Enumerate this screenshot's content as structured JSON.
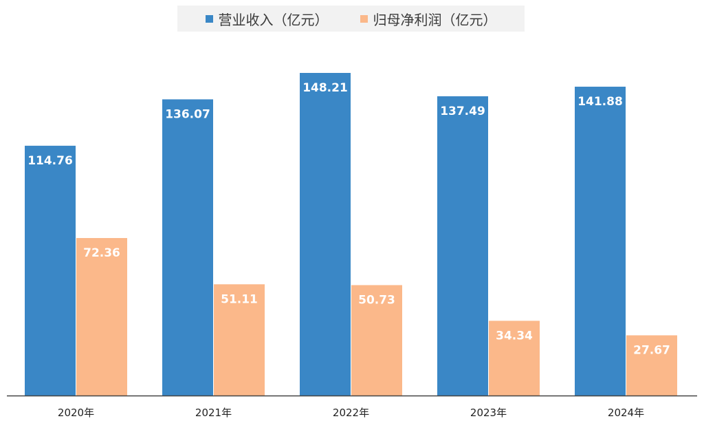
{
  "chart_data": {
    "type": "bar",
    "categories": [
      "2020年",
      "2021年",
      "2022年",
      "2023年",
      "2024年"
    ],
    "series": [
      {
        "name": "营业收入（亿元）",
        "color": "#3a87c6",
        "values": [
          114.76,
          136.07,
          148.21,
          137.49,
          141.88
        ],
        "labels": [
          "114.76",
          "136.07",
          "148.21",
          "137.49",
          "141.88"
        ]
      },
      {
        "name": "归母净利润（亿元）",
        "color": "#fbb88a",
        "values": [
          72.36,
          51.11,
          50.73,
          34.34,
          27.67
        ],
        "labels": [
          "72.36",
          "51.11",
          "50.73",
          "34.34",
          "27.67"
        ]
      }
    ],
    "ylim": [
      0,
      148.21
    ],
    "grid": false,
    "legend_position": "top-center",
    "data_labels": "inside-top"
  }
}
